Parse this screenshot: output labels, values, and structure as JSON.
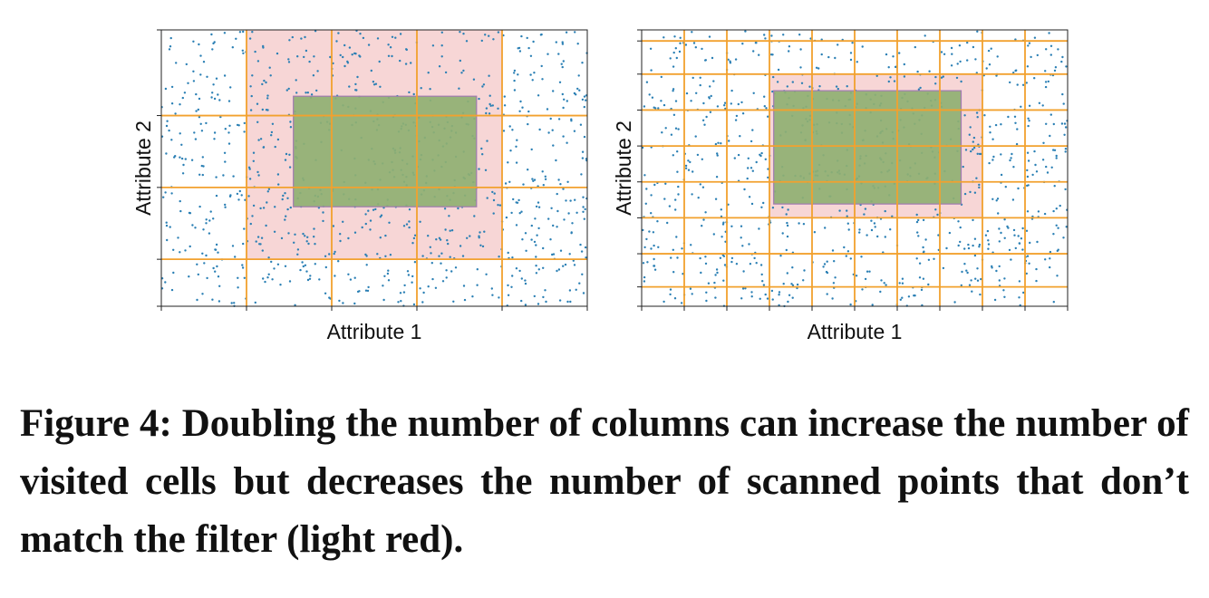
{
  "colors": {
    "grid_line": "#f2a12e",
    "point": "#2a7fb4",
    "scanned_region": "#f7d6d6",
    "query_region": "#8fb072",
    "query_border": "#a07ab0",
    "frame": "#222222"
  },
  "chart_data": [
    {
      "type": "scatter",
      "xlabel": "Attribute 1",
      "ylabel": "Attribute 2",
      "xlim": [
        0,
        10
      ],
      "ylim": [
        0,
        10
      ],
      "point_count": 900,
      "grid_columns_x": [
        0,
        2,
        4,
        6,
        8,
        10
      ],
      "grid_rows_y": [
        0,
        1.7,
        4.3,
        6.9,
        10
      ],
      "scanned_region": {
        "x": [
          2,
          8
        ],
        "y": [
          1.7,
          10
        ]
      },
      "query_region": {
        "x": [
          3.1,
          7.4
        ],
        "y": [
          3.6,
          7.6
        ]
      }
    },
    {
      "type": "scatter",
      "xlabel": "Attribute 1",
      "ylabel": "Attribute 2",
      "xlim": [
        0,
        10
      ],
      "ylim": [
        0,
        10
      ],
      "point_count": 900,
      "grid_columns_x": [
        0,
        1,
        2,
        3,
        4,
        5,
        6,
        7,
        8,
        9,
        10
      ],
      "grid_rows_y": [
        0,
        0.7,
        1.9,
        3.2,
        4.5,
        5.8,
        7.1,
        8.4,
        9.6,
        10
      ],
      "scanned_region": {
        "x": [
          3,
          8
        ],
        "y": [
          3.2,
          8.4
        ]
      },
      "query_region": {
        "x": [
          3.1,
          7.5
        ],
        "y": [
          3.7,
          7.8
        ]
      }
    }
  ],
  "caption": {
    "text": "Figure 4: Doubling the number of columns can increase the number of visited cells but decreases the number of scanned points that don’t match the filter (light red)."
  }
}
